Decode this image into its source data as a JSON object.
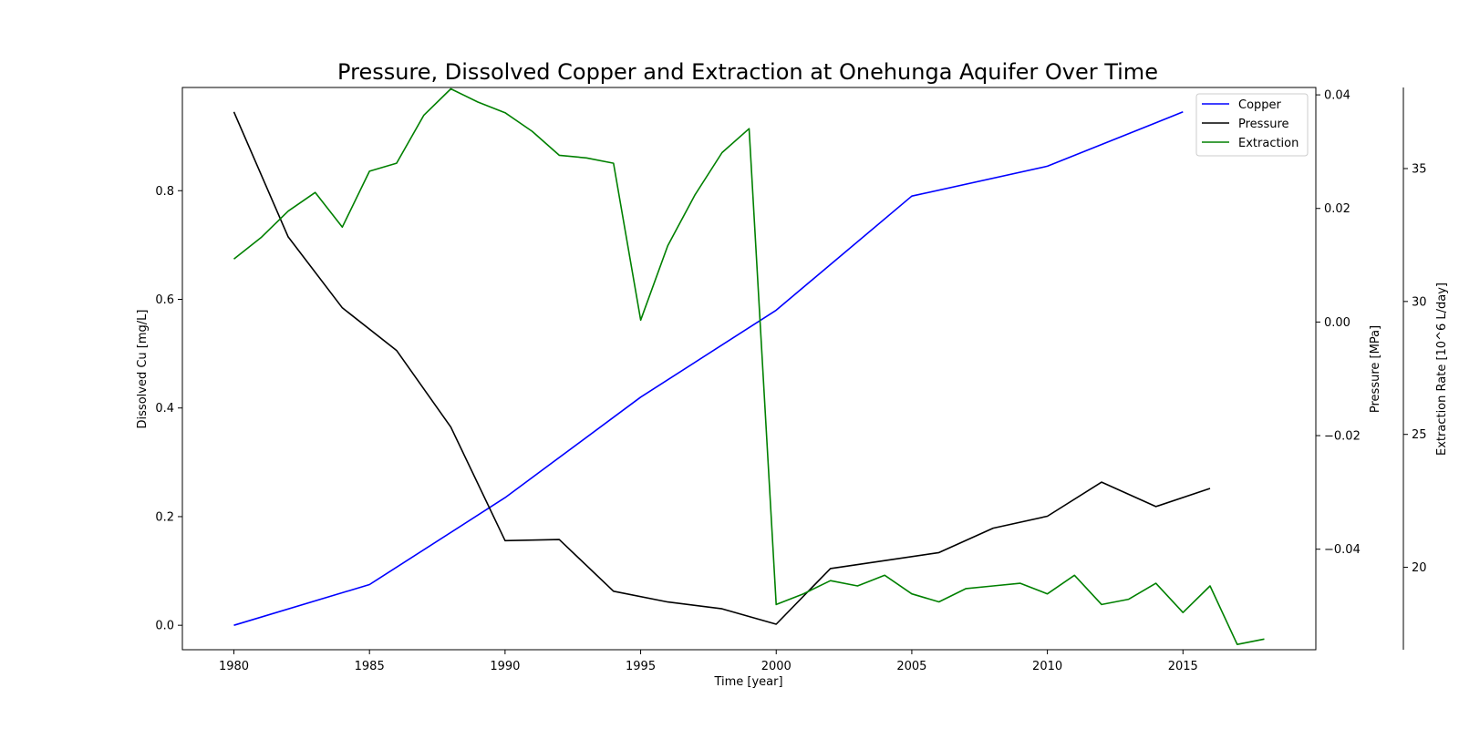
{
  "chart_data": {
    "type": "line",
    "title": "Pressure, Dissolved Copper and Extraction at Onehunga Aquifer Over Time",
    "xlabel": "Time [year]",
    "xlim": [
      1978.1,
      2019.9
    ],
    "x_ticks": [
      1980,
      1985,
      1990,
      1995,
      2000,
      2005,
      2010,
      2015
    ],
    "grid": false,
    "legend_position": "top-right",
    "axes": {
      "copper": {
        "label": "Dissolved Cu [mg/L]",
        "side": "left",
        "ylim": [
          -0.045,
          0.99
        ],
        "ticks": [
          0.0,
          0.2,
          0.4,
          0.6,
          0.8
        ],
        "tick_labels": [
          "0.0",
          "0.2",
          "0.4",
          "0.6",
          "0.8"
        ]
      },
      "pressure": {
        "label": "Pressure [MPa]",
        "side": "right",
        "ylim": [
          -0.0577,
          0.0413
        ],
        "ticks": [
          -0.04,
          -0.02,
          0.0,
          0.02,
          0.04
        ],
        "tick_labels": [
          "−0.04",
          "−0.02",
          "0.00",
          "0.02",
          "0.04"
        ]
      },
      "extraction": {
        "label": "Extraction Rate [10^6 L/day]",
        "side": "right-outer",
        "ylim": [
          16.9,
          38.05
        ],
        "ticks": [
          20,
          25,
          30,
          35
        ],
        "tick_labels": [
          "20",
          "25",
          "30",
          "35"
        ]
      }
    },
    "series": [
      {
        "name": "Copper",
        "color": "#0000ff",
        "axis": "copper",
        "x": [
          1980,
          1985,
          1990,
          1995,
          2000,
          2005,
          2010,
          2015
        ],
        "values": [
          0.0,
          0.075,
          0.235,
          0.42,
          0.58,
          0.79,
          0.845,
          0.945
        ]
      },
      {
        "name": "Pressure",
        "color": "#000000",
        "axis": "pressure",
        "x": [
          1980,
          1982,
          1984,
          1986,
          1988,
          1990,
          1992,
          1994,
          1996,
          1998,
          2000,
          2002,
          2004,
          2006,
          2008,
          2010,
          2012,
          2014,
          2016
        ],
        "values": [
          0.037,
          0.015,
          0.0025,
          -0.005,
          -0.0185,
          -0.0385,
          -0.0383,
          -0.0474,
          -0.0493,
          -0.0505,
          -0.0532,
          -0.0434,
          -0.042,
          -0.0406,
          -0.0363,
          -0.0342,
          -0.0282,
          -0.0325,
          -0.0293
        ]
      },
      {
        "name": "Extraction",
        "color": "#008000",
        "axis": "extraction",
        "x": [
          1980,
          1981,
          1982,
          1983,
          1984,
          1985,
          1986,
          1987,
          1988,
          1989,
          1990,
          1991,
          1992,
          1993,
          1994,
          1995,
          1996,
          1997,
          1998,
          1999,
          2000,
          2001,
          2002,
          2003,
          2004,
          2005,
          2006,
          2007,
          2008,
          2009,
          2010,
          2011,
          2012,
          2013,
          2014,
          2015,
          2016,
          2017,
          2018
        ],
        "values": [
          31.6,
          32.4,
          33.4,
          34.1,
          32.8,
          34.9,
          35.2,
          37.0,
          38.0,
          37.5,
          37.1,
          36.4,
          35.5,
          35.4,
          35.2,
          29.3,
          32.1,
          34.0,
          35.6,
          36.5,
          18.6,
          19.0,
          19.5,
          19.3,
          19.7,
          19.0,
          18.7,
          19.2,
          19.3,
          19.4,
          19.0,
          19.7,
          18.6,
          18.8,
          19.4,
          18.3,
          19.3,
          17.1,
          17.3
        ]
      }
    ]
  }
}
